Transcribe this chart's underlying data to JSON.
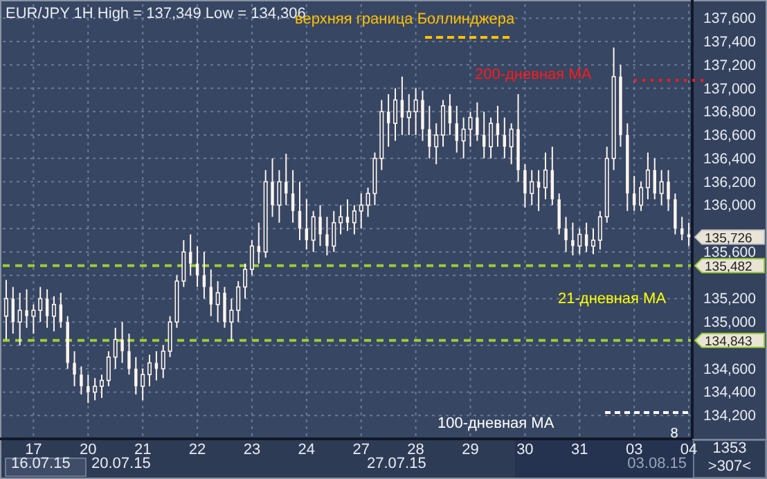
{
  "chart_data": {
    "type": "candlestick",
    "title": "EUR/JPY 1H High = 137,349 Low = 134,306",
    "categories": [
      null,
      null,
      null,
      null,
      "17",
      null,
      null,
      null,
      null,
      null,
      null,
      null,
      "20",
      null,
      null,
      null,
      null,
      null,
      null,
      null,
      "21",
      null,
      null,
      null,
      null,
      null,
      null,
      null,
      "22",
      null,
      null,
      null,
      null,
      null,
      null,
      null,
      "23",
      null,
      null,
      null,
      null,
      null,
      null,
      null,
      "24",
      null,
      null,
      null,
      null,
      null,
      null,
      null,
      "27",
      null,
      null,
      null,
      null,
      null,
      null,
      null,
      "28",
      null,
      null,
      null,
      null,
      null,
      null,
      null,
      "29",
      null,
      null,
      null,
      null,
      null,
      null,
      null,
      "30",
      null,
      null,
      null,
      null,
      null,
      null,
      null,
      "31",
      null,
      null,
      null,
      null,
      null,
      null,
      null,
      "03",
      null,
      null,
      null,
      null,
      null,
      null,
      null,
      "04"
    ],
    "ohlc": [
      [
        135050,
        135360,
        134850,
        135200
      ],
      [
        135200,
        135300,
        134900,
        135000
      ],
      [
        135000,
        135250,
        134800,
        135100
      ],
      [
        135100,
        135280,
        134950,
        135050
      ],
      [
        135050,
        135150,
        134900,
        135100
      ],
      [
        135100,
        135300,
        135000,
        135200
      ],
      [
        135200,
        135280,
        134950,
        135050
      ],
      [
        135050,
        135220,
        134920,
        135150
      ],
      [
        135150,
        135250,
        134950,
        135000
      ],
      [
        135000,
        135050,
        134600,
        134650
      ],
      [
        134650,
        134750,
        134450,
        134550
      ],
      [
        134550,
        134620,
        134380,
        134450
      ],
      [
        134450,
        134550,
        134306,
        134400
      ],
      [
        134400,
        134520,
        134330,
        134450
      ],
      [
        134450,
        134550,
        134350,
        134500
      ],
      [
        134500,
        134750,
        134450,
        134700
      ],
      [
        134700,
        134950,
        134600,
        134850
      ],
      [
        134850,
        135000,
        134650,
        134750
      ],
      [
        134750,
        134900,
        134550,
        134600
      ],
      [
        134600,
        134700,
        134380,
        134450
      ],
      [
        134450,
        134600,
        134330,
        134550
      ],
      [
        134550,
        134720,
        134450,
        134650
      ],
      [
        134650,
        134750,
        134500,
        134600
      ],
      [
        134600,
        134800,
        134520,
        134750
      ],
      [
        134750,
        135050,
        134700,
        135000
      ],
      [
        135000,
        135400,
        134950,
        135350
      ],
      [
        135350,
        135700,
        135300,
        135600
      ],
      [
        135600,
        135750,
        135400,
        135500
      ],
      [
        135500,
        135650,
        135300,
        135400
      ],
      [
        135400,
        135600,
        135200,
        135300
      ],
      [
        135300,
        135450,
        135050,
        135150
      ],
      [
        135150,
        135350,
        135000,
        135250
      ],
      [
        135250,
        135300,
        134950,
        135000
      ],
      [
        135000,
        135200,
        134840,
        135100
      ],
      [
        135100,
        135350,
        135000,
        135300
      ],
      [
        135300,
        135500,
        135200,
        135450
      ],
      [
        135450,
        135700,
        135400,
        135650
      ],
      [
        135650,
        135850,
        135500,
        135600
      ],
      [
        135600,
        136300,
        135550,
        136200
      ],
      [
        136200,
        136400,
        135900,
        136000
      ],
      [
        136000,
        136300,
        135850,
        136200
      ],
      [
        136200,
        136440,
        136000,
        136100
      ],
      [
        136100,
        136300,
        135850,
        135950
      ],
      [
        135950,
        136200,
        135700,
        135800
      ],
      [
        135800,
        136050,
        135620,
        135700
      ],
      [
        135700,
        135950,
        135600,
        135900
      ],
      [
        135900,
        136000,
        135650,
        135750
      ],
      [
        135750,
        135900,
        135570,
        135650
      ],
      [
        135650,
        135950,
        135600,
        135850
      ],
      [
        135850,
        136000,
        135750,
        135900
      ],
      [
        135900,
        136050,
        135780,
        135850
      ],
      [
        135850,
        136000,
        135750,
        135950
      ],
      [
        135950,
        136100,
        135800,
        136000
      ],
      [
        136000,
        136150,
        135900,
        136100
      ],
      [
        136100,
        136450,
        136000,
        136400
      ],
      [
        136400,
        136900,
        136300,
        136800
      ],
      [
        136800,
        136950,
        136500,
        136700
      ],
      [
        136700,
        137000,
        136550,
        136900
      ],
      [
        136900,
        137100,
        136600,
        136750
      ],
      [
        136750,
        136950,
        136600,
        136800
      ],
      [
        136800,
        137000,
        136600,
        136900
      ],
      [
        136900,
        136980,
        136550,
        136650
      ],
      [
        136650,
        136850,
        136400,
        136500
      ],
      [
        136500,
        136700,
        136350,
        136600
      ],
      [
        136600,
        136900,
        136500,
        136850
      ],
      [
        136850,
        136950,
        136600,
        136700
      ],
      [
        136700,
        136850,
        136450,
        136550
      ],
      [
        136550,
        136750,
        136400,
        136650
      ],
      [
        136650,
        136800,
        136500,
        136750
      ],
      [
        136750,
        136880,
        136550,
        136600
      ],
      [
        136600,
        136800,
        136400,
        136500
      ],
      [
        136500,
        136750,
        136400,
        136700
      ],
      [
        136700,
        136850,
        136500,
        136600
      ],
      [
        136600,
        136750,
        136400,
        136500
      ],
      [
        136500,
        136700,
        136350,
        136650
      ],
      [
        136650,
        136950,
        136200,
        136300
      ],
      [
        136300,
        136350,
        135980,
        136100
      ],
      [
        136100,
        136300,
        136000,
        136200
      ],
      [
        136200,
        136300,
        135950,
        136150
      ],
      [
        136150,
        136450,
        136050,
        136300
      ],
      [
        136300,
        136500,
        136000,
        136050
      ],
      [
        136050,
        136100,
        135750,
        135800
      ],
      [
        135800,
        135900,
        135600,
        135700
      ],
      [
        135700,
        135850,
        135570,
        135650
      ],
      [
        135650,
        135800,
        135580,
        135750
      ],
      [
        135750,
        135850,
        135600,
        135650
      ],
      [
        135650,
        135800,
        135580,
        135700
      ],
      [
        135700,
        135950,
        135620,
        135900
      ],
      [
        135900,
        136500,
        135850,
        136400
      ],
      [
        136400,
        137349,
        136300,
        137100
      ],
      [
        137100,
        137200,
        136500,
        136600
      ],
      [
        136600,
        136700,
        135950,
        136100
      ],
      [
        136100,
        136250,
        135950,
        136000
      ],
      [
        136000,
        136200,
        135950,
        136150
      ],
      [
        136150,
        136450,
        136050,
        136300
      ],
      [
        136300,
        136400,
        136050,
        136100
      ],
      [
        136100,
        136300,
        136000,
        136200
      ],
      [
        136200,
        136300,
        135950,
        136050
      ],
      [
        136050,
        136100,
        135750,
        135800
      ],
      [
        135800,
        135900,
        135700,
        135750
      ],
      [
        135750,
        135850,
        135650,
        135726
      ]
    ],
    "ylim": [
      134000,
      137720
    ],
    "yticks": [
      {
        "value": 134200,
        "label": "134,200"
      },
      {
        "value": 134400,
        "label": "134,400"
      },
      {
        "value": 134600,
        "label": "134,600"
      },
      {
        "value": 134800,
        "label": null
      },
      {
        "value": 135000,
        "label": "135,000"
      },
      {
        "value": 135200,
        "label": "135,200"
      },
      {
        "value": 135400,
        "label": null
      },
      {
        "value": 135600,
        "label": "135,600"
      },
      {
        "value": 135800,
        "label": null
      },
      {
        "value": 136000,
        "label": "136,000"
      },
      {
        "value": 136200,
        "label": "136,200"
      },
      {
        "value": 136400,
        "label": "136,400"
      },
      {
        "value": 136600,
        "label": "136,600"
      },
      {
        "value": 136800,
        "label": "136,800"
      },
      {
        "value": 137000,
        "label": "137,000"
      },
      {
        "value": 137200,
        "label": "137,200"
      },
      {
        "value": 137400,
        "label": "137,400"
      },
      {
        "value": 137600,
        "label": "137,600"
      }
    ],
    "grid": true,
    "ref_lines": [
      {
        "axis": "y",
        "value": 135482,
        "label": "135,482",
        "color": "#9acd32",
        "line_style": "dashed"
      },
      {
        "axis": "y",
        "value": 134843,
        "label": "134,843",
        "color": "#9acd32",
        "line_style": "dashed"
      }
    ],
    "annotations": [
      "верхняя граница Боллинджера",
      "200-дневная MA",
      "21-дневная MA",
      "100-дневная MA",
      "8",
      "135,726",
      "16.07.15",
      "20.07.15",
      "27.07.15",
      "03.08.15",
      "1353",
      ">307<"
    ]
  }
}
